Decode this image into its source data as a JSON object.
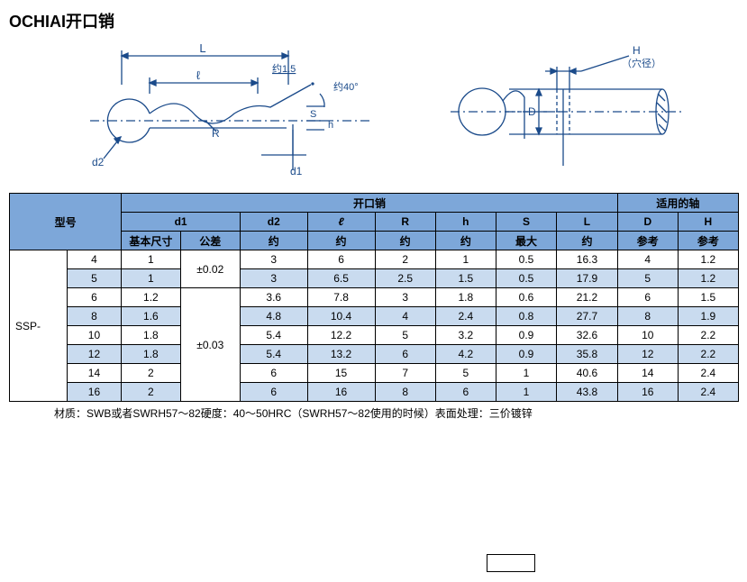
{
  "title": "OCHIAI开口销",
  "diagram": {
    "labels": {
      "L": "L",
      "l": "ℓ",
      "R": "R",
      "d2": "d2",
      "d1": "d1",
      "S": "S",
      "h": "h",
      "approx15": "约1.5",
      "approx40": "约40°",
      "D": "D",
      "H_label": "H",
      "H_sub": "（穴径）"
    },
    "colors": {
      "line": "#1a4a8a",
      "bg": "#ffffff"
    }
  },
  "table": {
    "header": {
      "model": "型号",
      "group_main": "开口销",
      "group_shaft": "适用的轴",
      "d1": "d1",
      "d2": "d2",
      "l": "ℓ",
      "R": "R",
      "h": "h",
      "S": "S",
      "L": "L",
      "D": "D",
      "H": "H",
      "basic": "基本尺寸",
      "tol": "公差",
      "approx": "约",
      "max": "最大",
      "ref": "参考"
    },
    "prefix": "SSP-",
    "tol1": "±0.02",
    "tol2": "±0.03",
    "rows": [
      {
        "size": "4",
        "d1": "1",
        "d2": "3",
        "l": "6",
        "R": "2",
        "h": "1",
        "S": "0.5",
        "L": "16.3",
        "D": "4",
        "H": "1.2",
        "shaded": false
      },
      {
        "size": "5",
        "d1": "1",
        "d2": "3",
        "l": "6.5",
        "R": "2.5",
        "h": "1.5",
        "S": "0.5",
        "L": "17.9",
        "D": "5",
        "H": "1.2",
        "shaded": true
      },
      {
        "size": "6",
        "d1": "1.2",
        "d2": "3.6",
        "l": "7.8",
        "R": "3",
        "h": "1.8",
        "S": "0.6",
        "L": "21.2",
        "D": "6",
        "H": "1.5",
        "shaded": false
      },
      {
        "size": "8",
        "d1": "1.6",
        "d2": "4.8",
        "l": "10.4",
        "R": "4",
        "h": "2.4",
        "S": "0.8",
        "L": "27.7",
        "D": "8",
        "H": "1.9",
        "shaded": true
      },
      {
        "size": "10",
        "d1": "1.8",
        "d2": "5.4",
        "l": "12.2",
        "R": "5",
        "h": "3.2",
        "S": "0.9",
        "L": "32.6",
        "D": "10",
        "H": "2.2",
        "shaded": false
      },
      {
        "size": "12",
        "d1": "1.8",
        "d2": "5.4",
        "l": "13.2",
        "R": "6",
        "h": "4.2",
        "S": "0.9",
        "L": "35.8",
        "D": "12",
        "H": "2.2",
        "shaded": true
      },
      {
        "size": "14",
        "d1": "2",
        "d2": "6",
        "l": "15",
        "R": "7",
        "h": "5",
        "S": "1",
        "L": "40.6",
        "D": "14",
        "H": "2.4",
        "shaded": false
      },
      {
        "size": "16",
        "d1": "2",
        "d2": "6",
        "l": "16",
        "R": "8",
        "h": "6",
        "S": "1",
        "L": "43.8",
        "D": "16",
        "H": "2.4",
        "shaded": true
      }
    ]
  },
  "footnote": "材质：SWB或者SWRH57～82硬度：40～50HRC（SWRH57～82使用的时候）表面处理：三价镀锌"
}
